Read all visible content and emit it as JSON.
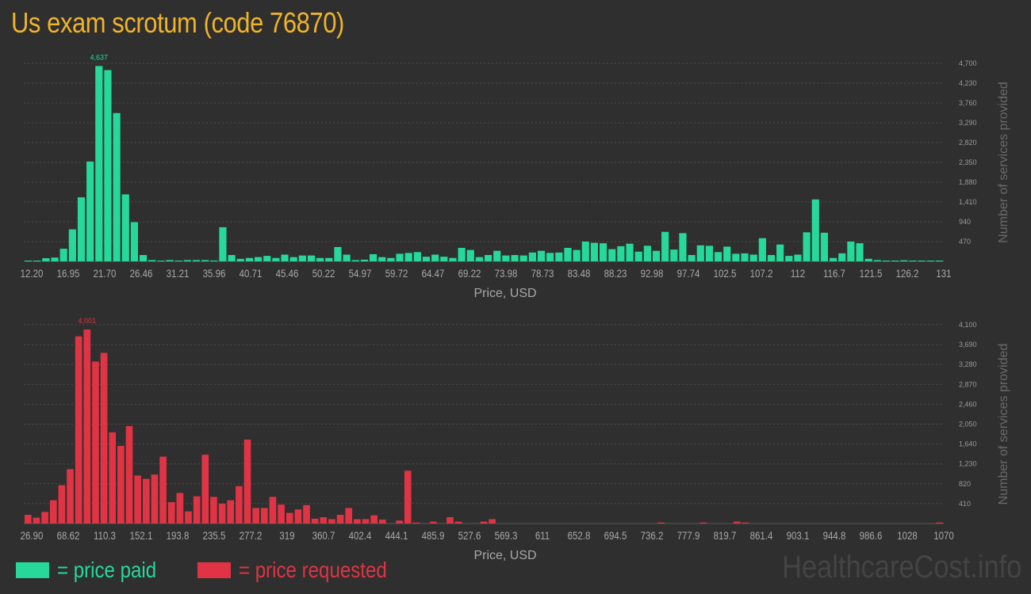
{
  "title": "Us exam scrotum (code 76870)",
  "legend": {
    "paid_label": "= price paid",
    "requested_label": "= price requested"
  },
  "watermark": "HealthcareCost.info",
  "colors": {
    "paid": "#26d99a",
    "requested": "#e03444",
    "title": "#f0b429",
    "background": "#2f2f2f"
  },
  "chart_data": [
    {
      "type": "bar",
      "name": "price-paid-histogram",
      "xlabel": "Price, USD",
      "ylabel": "Number of services provided",
      "ylim": [
        0,
        4700
      ],
      "y_ticks": [
        "470",
        "940",
        "1,410",
        "1,880",
        "2,350",
        "2,820",
        "3,290",
        "3,760",
        "4,230",
        "4,700"
      ],
      "x_ticks": [
        "12.20",
        "16.95",
        "21.70",
        "26.46",
        "31.21",
        "35.96",
        "40.71",
        "45.46",
        "50.22",
        "54.97",
        "59.72",
        "64.47",
        "69.22",
        "73.98",
        "78.73",
        "83.48",
        "88.23",
        "92.98",
        "97.74",
        "102.5",
        "107.2",
        "112",
        "116.7",
        "121.5",
        "126.2",
        "131"
      ],
      "peak_label": "4,637",
      "peak_index": 8,
      "values": [
        15,
        5,
        75,
        90,
        300,
        760,
        1520,
        2370,
        4637,
        4540,
        3520,
        1590,
        930,
        150,
        30,
        5,
        30,
        10,
        30,
        30,
        30,
        20,
        810,
        150,
        60,
        80,
        100,
        130,
        80,
        160,
        100,
        140,
        140,
        80,
        80,
        340,
        160,
        30,
        40,
        170,
        100,
        80,
        180,
        200,
        220,
        110,
        160,
        110,
        80,
        320,
        270,
        100,
        150,
        250,
        140,
        150,
        140,
        210,
        250,
        200,
        210,
        320,
        270,
        470,
        440,
        430,
        290,
        360,
        420,
        230,
        370,
        250,
        700,
        280,
        670,
        150,
        380,
        370,
        220,
        350,
        180,
        190,
        160,
        550,
        150,
        400,
        130,
        160,
        690,
        1470,
        680,
        80,
        190,
        470,
        430,
        60,
        30,
        10,
        10,
        25,
        5,
        5,
        5,
        10
      ]
    },
    {
      "type": "bar",
      "name": "price-requested-histogram",
      "xlabel": "Price, USD",
      "ylabel": "Number of services provided",
      "ylim": [
        0,
        4100
      ],
      "y_ticks": [
        "410",
        "820",
        "1,230",
        "1,640",
        "2,050",
        "2,460",
        "2,870",
        "3,280",
        "3,690",
        "4,100"
      ],
      "x_ticks": [
        "26.90",
        "68.62",
        "110.3",
        "152.1",
        "193.8",
        "235.5",
        "277.2",
        "319",
        "360.7",
        "402.4",
        "444.1",
        "485.9",
        "527.6",
        "569.3",
        "611",
        "652.8",
        "694.5",
        "736.2",
        "777.9",
        "819.7",
        "861.4",
        "903.1",
        "944.8",
        "986.6",
        "1028",
        "1070"
      ],
      "peak_label": "4,001",
      "peak_index": 7,
      "values": [
        180,
        120,
        240,
        480,
        790,
        1120,
        3860,
        4001,
        3340,
        3520,
        1880,
        1600,
        2010,
        990,
        920,
        1010,
        1380,
        440,
        630,
        250,
        560,
        1420,
        550,
        410,
        480,
        770,
        1730,
        320,
        320,
        550,
        390,
        220,
        290,
        380,
        100,
        130,
        90,
        180,
        320,
        90,
        90,
        170,
        80,
        0,
        60,
        1090,
        20,
        0,
        40,
        0,
        130,
        40,
        0,
        0,
        40,
        90,
        0,
        0,
        0,
        0,
        0,
        0,
        0,
        0,
        0,
        0,
        0,
        0,
        0,
        0,
        0,
        0,
        0,
        0,
        0,
        20,
        0,
        0,
        0,
        0,
        20,
        0,
        0,
        0,
        40,
        20,
        0,
        0,
        0,
        0,
        0,
        0,
        0,
        0,
        0,
        0,
        0,
        0,
        0,
        0,
        0,
        0,
        0,
        0,
        0,
        0,
        0,
        0,
        20
      ]
    }
  ]
}
